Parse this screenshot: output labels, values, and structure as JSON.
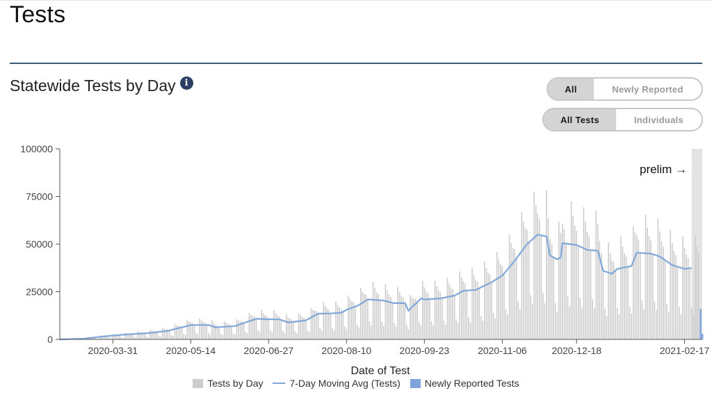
{
  "page": {
    "title": "Tests",
    "section_title": "Statewide Tests by Day"
  },
  "toggles": {
    "group1": [
      "All",
      "Newly Reported"
    ],
    "group2": [
      "All Tests",
      "Individuals"
    ]
  },
  "colors": {
    "bar": "#cccccc",
    "line": "#7fa7d9",
    "newly_reported": "#7fa4dc",
    "prelim_band": "#e3e3e3"
  },
  "chart_data": {
    "type": "bar",
    "xlabel": "Date of Test",
    "ylabel": "",
    "ylim": [
      0,
      100000
    ],
    "yticks": [
      0,
      25000,
      50000,
      75000,
      100000
    ],
    "ytick_labels": [
      "0",
      "25000",
      "50000",
      "75000",
      "100000"
    ],
    "xticks": [
      "2020-03-31",
      "2020-05-14",
      "2020-06-27",
      "2020-08-10",
      "2020-09-23",
      "2020-11-06",
      "2020-12-18",
      "2021-02-17"
    ],
    "xlim": [
      "2020-03-01",
      "2021-02-27"
    ],
    "prelim_label": "prelim →",
    "prelim_start": "2021-02-21",
    "legend": [
      "Tests by Day",
      "7-Day Moving Avg (Tests)",
      "Newly Reported Tests"
    ],
    "series": [
      {
        "name": "7-Day Moving Avg (Tests)",
        "type": "line",
        "points": [
          [
            "2020-03-01",
            0
          ],
          [
            "2020-03-15",
            400
          ],
          [
            "2020-03-25",
            1500
          ],
          [
            "2020-04-05",
            2400
          ],
          [
            "2020-04-20",
            3300
          ],
          [
            "2020-05-01",
            4500
          ],
          [
            "2020-05-14",
            7500
          ],
          [
            "2020-05-24",
            7600
          ],
          [
            "2020-05-28",
            6300
          ],
          [
            "2020-06-08",
            7000
          ],
          [
            "2020-06-20",
            10800
          ],
          [
            "2020-06-27",
            10600
          ],
          [
            "2020-07-03",
            10500
          ],
          [
            "2020-07-08",
            8900
          ],
          [
            "2020-07-18",
            10000
          ],
          [
            "2020-07-25",
            13500
          ],
          [
            "2020-08-01",
            13600
          ],
          [
            "2020-08-07",
            14000
          ],
          [
            "2020-08-10",
            15500
          ],
          [
            "2020-08-17",
            18000
          ],
          [
            "2020-08-22",
            21000
          ],
          [
            "2020-08-30",
            20500
          ],
          [
            "2020-09-06",
            19000
          ],
          [
            "2020-09-12",
            19000
          ],
          [
            "2020-09-14",
            15000
          ],
          [
            "2020-09-16",
            17000
          ],
          [
            "2020-09-19",
            19500
          ],
          [
            "2020-09-21",
            21500
          ],
          [
            "2020-09-23",
            21000
          ],
          [
            "2020-10-02",
            21500
          ],
          [
            "2020-10-10",
            23000
          ],
          [
            "2020-10-15",
            25500
          ],
          [
            "2020-10-22",
            26000
          ],
          [
            "2020-10-31",
            30000
          ],
          [
            "2020-11-06",
            33500
          ],
          [
            "2020-11-12",
            40000
          ],
          [
            "2020-11-20",
            50000
          ],
          [
            "2020-11-26",
            55000
          ],
          [
            "2020-12-01",
            54000
          ],
          [
            "2020-12-03",
            44000
          ],
          [
            "2020-12-07",
            42000
          ],
          [
            "2020-12-09",
            43000
          ],
          [
            "2020-12-10",
            50500
          ],
          [
            "2020-12-18",
            49500
          ],
          [
            "2020-12-24",
            47000
          ],
          [
            "2020-12-30",
            46500
          ],
          [
            "2021-01-02",
            36000
          ],
          [
            "2021-01-07",
            34500
          ],
          [
            "2021-01-10",
            37000
          ],
          [
            "2021-01-18",
            38500
          ],
          [
            "2021-01-21",
            45500
          ],
          [
            "2021-01-29",
            45000
          ],
          [
            "2021-02-03",
            43500
          ],
          [
            "2021-02-10",
            39000
          ],
          [
            "2021-02-17",
            37000
          ],
          [
            "2021-02-21",
            37500
          ]
        ]
      },
      {
        "name": "Newly Reported Tests",
        "type": "bar",
        "note": "small bars at the right edge",
        "points": [
          [
            "2021-02-26",
            16000
          ],
          [
            "2021-02-27",
            3000
          ]
        ]
      }
    ]
  }
}
